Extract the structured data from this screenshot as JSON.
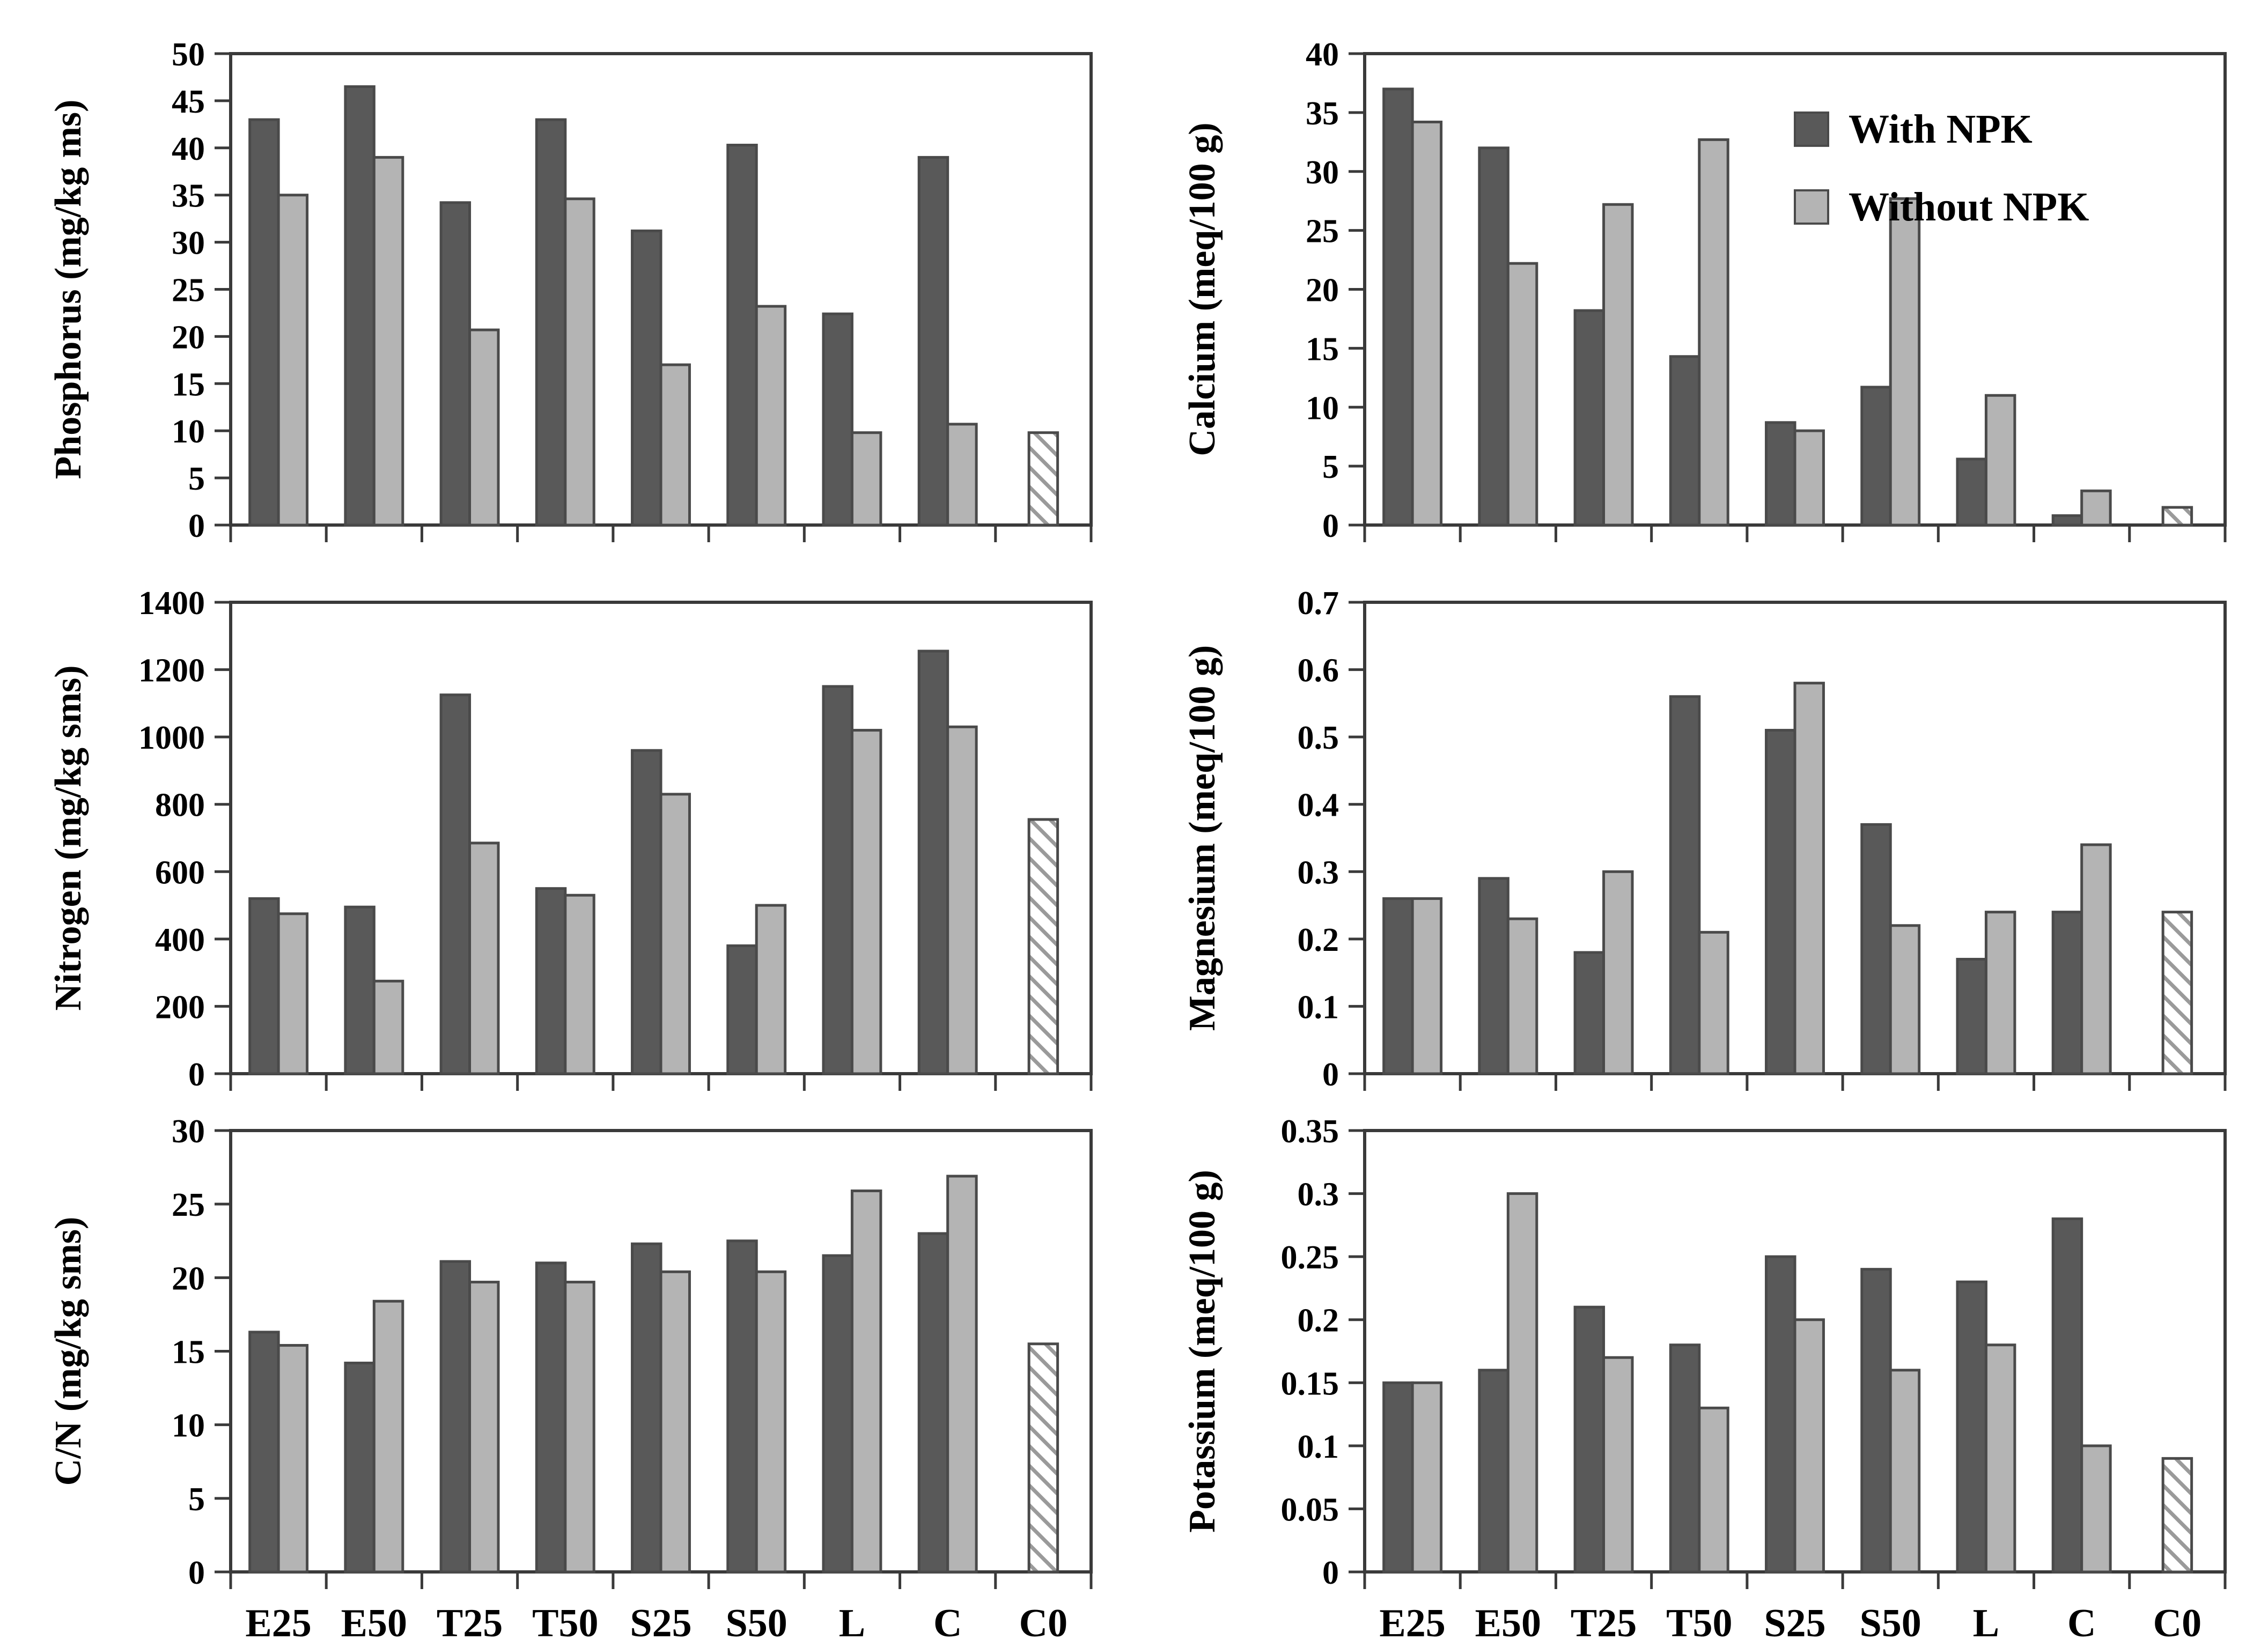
{
  "figure": {
    "legend": {
      "position": "top-right-panel",
      "items": [
        {
          "label": "With NPK",
          "swatch": "dark-gray-square",
          "color": "#595959"
        },
        {
          "label": "Without NPK",
          "swatch": "light-gray-square",
          "color": "#b4b4b4"
        }
      ]
    },
    "colors": {
      "with_npk_fill": "#595959",
      "without_npk_fill": "#b4b4b4",
      "bar_stroke": "#4a4a4a",
      "axis": "#3a3a3a",
      "hatch_line": "#9a9a9a",
      "background": "#ffffff"
    }
  },
  "chart_data": [
    {
      "id": "phosphorus",
      "type": "bar",
      "title": "",
      "ylabel": "Phosphorus (mg/kg ms)",
      "xlabel": "",
      "ylim": [
        0,
        50
      ],
      "yticks": [
        "0",
        "5",
        "10",
        "15",
        "20",
        "25",
        "30",
        "35",
        "40",
        "45",
        "50"
      ],
      "grid": false,
      "x_labels_visible": false,
      "legend_visible": false,
      "categories": [
        "E25",
        "E50",
        "T25",
        "T50",
        "S25",
        "S50",
        "L",
        "C",
        "C0"
      ],
      "series": [
        {
          "name": "With NPK",
          "values": [
            43,
            46.5,
            34.2,
            43,
            31.2,
            40.3,
            22.4,
            39,
            null
          ]
        },
        {
          "name": "Without NPK",
          "values": [
            35,
            39,
            20.7,
            34.6,
            17,
            23.2,
            9.8,
            10.7,
            null
          ]
        }
      ],
      "control": {
        "category": "C0",
        "value": 9.8,
        "style": "hatched"
      }
    },
    {
      "id": "calcium",
      "type": "bar",
      "title": "",
      "ylabel": "Calcium (meq/100 g)",
      "xlabel": "",
      "ylim": [
        0,
        40
      ],
      "yticks": [
        "0",
        "5",
        "10",
        "15",
        "20",
        "25",
        "30",
        "35",
        "40"
      ],
      "grid": false,
      "x_labels_visible": false,
      "legend_visible": true,
      "categories": [
        "E25",
        "E50",
        "T25",
        "T50",
        "S25",
        "S50",
        "L",
        "C",
        "C0"
      ],
      "series": [
        {
          "name": "With NPK",
          "values": [
            37,
            32,
            18.2,
            14.3,
            8.7,
            11.7,
            5.6,
            0.8,
            null
          ]
        },
        {
          "name": "Without NPK",
          "values": [
            34.2,
            22.2,
            27.2,
            32.7,
            8,
            27.7,
            11,
            2.9,
            null
          ]
        }
      ],
      "control": {
        "category": "C0",
        "value": 1.5,
        "style": "hatched"
      }
    },
    {
      "id": "nitrogen",
      "type": "bar",
      "title": "",
      "ylabel": "Nitrogen (mg/kg sms)",
      "xlabel": "",
      "ylim": [
        0,
        1400
      ],
      "yticks": [
        "0",
        "200",
        "400",
        "600",
        "800",
        "1000",
        "1200",
        "1400"
      ],
      "grid": false,
      "x_labels_visible": false,
      "legend_visible": false,
      "categories": [
        "E25",
        "E50",
        "T25",
        "T50",
        "S25",
        "S50",
        "L",
        "C",
        "C0"
      ],
      "series": [
        {
          "name": "With NPK",
          "values": [
            520,
            495,
            1125,
            550,
            960,
            380,
            1150,
            1255,
            null
          ]
        },
        {
          "name": "Without NPK",
          "values": [
            475,
            275,
            685,
            530,
            830,
            500,
            1020,
            1030,
            null
          ]
        }
      ],
      "control": {
        "category": "C0",
        "value": 755,
        "style": "hatched"
      }
    },
    {
      "id": "magnesium",
      "type": "bar",
      "title": "",
      "ylabel": "Magnesium (meq/100 g)",
      "xlabel": "",
      "ylim": [
        0,
        0.7
      ],
      "yticks": [
        "0",
        "0.1",
        "0.2",
        "0.3",
        "0.4",
        "0.5",
        "0.6",
        "0.7"
      ],
      "grid": false,
      "x_labels_visible": false,
      "legend_visible": false,
      "categories": [
        "E25",
        "E50",
        "T25",
        "T50",
        "S25",
        "S50",
        "L",
        "C",
        "C0"
      ],
      "series": [
        {
          "name": "With NPK",
          "values": [
            0.26,
            0.29,
            0.18,
            0.56,
            0.51,
            0.37,
            0.17,
            0.24,
            null
          ]
        },
        {
          "name": "Without NPK",
          "values": [
            0.26,
            0.23,
            0.3,
            0.21,
            0.58,
            0.22,
            0.24,
            0.34,
            null
          ]
        }
      ],
      "control": {
        "category": "C0",
        "value": 0.24,
        "style": "hatched"
      }
    },
    {
      "id": "cn-ratio",
      "type": "bar",
      "title": "",
      "ylabel": "C/N (mg/kg sms)",
      "xlabel": "",
      "ylim": [
        0,
        30
      ],
      "yticks": [
        "0",
        "5",
        "10",
        "15",
        "20",
        "25",
        "30"
      ],
      "grid": false,
      "x_labels_visible": true,
      "legend_visible": false,
      "categories": [
        "E25",
        "E50",
        "T25",
        "T50",
        "S25",
        "S50",
        "L",
        "C",
        "C0"
      ],
      "series": [
        {
          "name": "With NPK",
          "values": [
            16.3,
            14.2,
            21.1,
            21,
            22.3,
            22.5,
            21.5,
            23,
            null
          ]
        },
        {
          "name": "Without NPK",
          "values": [
            15.4,
            18.4,
            19.7,
            19.7,
            20.4,
            20.4,
            25.9,
            26.9,
            null
          ]
        }
      ],
      "control": {
        "category": "C0",
        "value": 15.5,
        "style": "hatched"
      }
    },
    {
      "id": "potassium",
      "type": "bar",
      "title": "",
      "ylabel": "Potassium (meq/100 g)",
      "xlabel": "",
      "ylim": [
        0,
        0.35
      ],
      "yticks": [
        "0",
        "0.05",
        "0.1",
        "0.15",
        "0.2",
        "0.25",
        "0.3",
        "0.35"
      ],
      "grid": false,
      "x_labels_visible": true,
      "legend_visible": false,
      "categories": [
        "E25",
        "E50",
        "T25",
        "T50",
        "S25",
        "S50",
        "L",
        "C",
        "C0"
      ],
      "series": [
        {
          "name": "With NPK",
          "values": [
            0.15,
            0.16,
            0.21,
            0.18,
            0.25,
            0.24,
            0.23,
            0.28,
            null
          ]
        },
        {
          "name": "Without NPK",
          "values": [
            0.15,
            0.3,
            0.17,
            0.13,
            0.2,
            0.16,
            0.18,
            0.1,
            null
          ]
        }
      ],
      "control": {
        "category": "C0",
        "value": 0.09,
        "style": "hatched"
      }
    }
  ]
}
